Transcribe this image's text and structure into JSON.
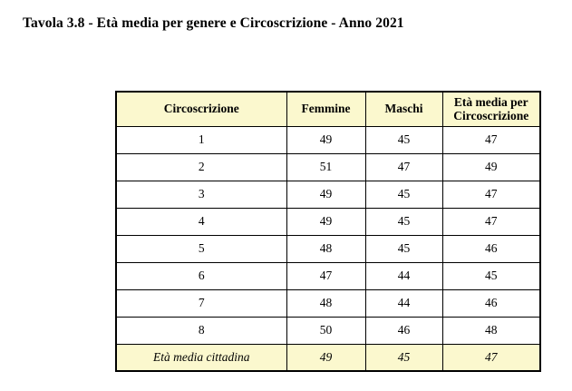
{
  "page": {
    "title": "Tavola 3.8 - Età media per genere e Circoscrizione - Anno 2021"
  },
  "colors": {
    "header_bg": "#fbf8ce",
    "footer_bg": "#fbf8ce",
    "border": "#000000",
    "text": "#000000"
  },
  "table": {
    "headers": [
      "Circoscrizione",
      "Femmine",
      "Maschi",
      "Età media per Circoscrizione"
    ],
    "rows": [
      [
        "1",
        "49",
        "45",
        "47"
      ],
      [
        "2",
        "51",
        "47",
        "49"
      ],
      [
        "3",
        "49",
        "45",
        "47"
      ],
      [
        "4",
        "49",
        "45",
        "47"
      ],
      [
        "5",
        "48",
        "45",
        "46"
      ],
      [
        "6",
        "47",
        "44",
        "45"
      ],
      [
        "7",
        "48",
        "44",
        "46"
      ],
      [
        "8",
        "50",
        "46",
        "48"
      ]
    ],
    "footer": [
      "Età media cittadina",
      "49",
      "45",
      "47"
    ]
  }
}
